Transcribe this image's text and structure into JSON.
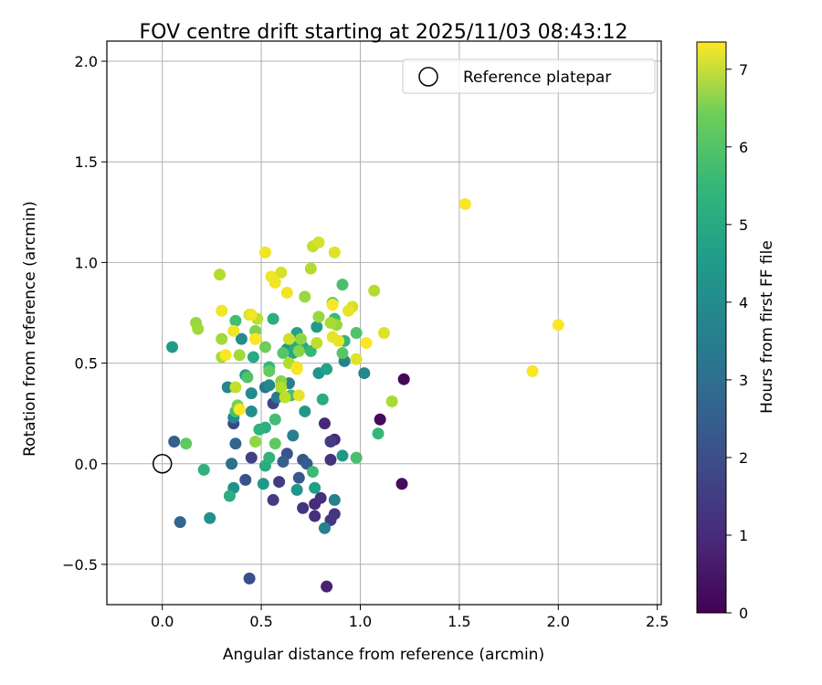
{
  "chart_data": {
    "type": "scatter",
    "title": "FOV centre drift starting at 2025/11/03 08:43:12",
    "xlabel": "Angular distance from reference (arcmin)",
    "ylabel": "Rotation from reference (arcmin)",
    "xlim": [
      -0.28,
      2.52
    ],
    "ylim": [
      -0.7,
      2.1
    ],
    "x_ticks": [
      {
        "value": 0.0,
        "label": "0.0"
      },
      {
        "value": 0.5,
        "label": "0.5"
      },
      {
        "value": 1.0,
        "label": "1.0"
      },
      {
        "value": 1.5,
        "label": "1.5"
      },
      {
        "value": 2.0,
        "label": "2.0"
      },
      {
        "value": 2.5,
        "label": "2.5"
      }
    ],
    "y_ticks": [
      {
        "value": -0.5,
        "label": "−0.5"
      },
      {
        "value": 0.0,
        "label": "0.0"
      },
      {
        "value": 0.5,
        "label": "0.5"
      },
      {
        "value": 1.0,
        "label": "1.0"
      },
      {
        "value": 1.5,
        "label": "1.5"
      },
      {
        "value": 2.0,
        "label": "2.0"
      }
    ],
    "grid": true,
    "legend": {
      "placement": "top-right",
      "entries": [
        {
          "label": "Reference platepar",
          "marker": "open-circle"
        }
      ]
    },
    "reference_point": {
      "x": 0.0,
      "y": 0.0
    },
    "colorbar": {
      "label": "Hours from first FF file",
      "colormap": "viridis",
      "range": [
        0,
        7.35
      ],
      "ticks": [
        {
          "value": 0,
          "label": "0"
        },
        {
          "value": 1,
          "label": "1"
        },
        {
          "value": 2,
          "label": "2"
        },
        {
          "value": 3,
          "label": "3"
        },
        {
          "value": 4,
          "label": "4"
        },
        {
          "value": 5,
          "label": "5"
        },
        {
          "value": 6,
          "label": "6"
        },
        {
          "value": 7,
          "label": "7"
        }
      ]
    },
    "points": [
      [
        1.22,
        0.42,
        0.1
      ],
      [
        1.1,
        0.22,
        0.2
      ],
      [
        1.21,
        -0.1,
        0.2
      ],
      [
        0.83,
        -0.61,
        0.7
      ],
      [
        0.82,
        0.2,
        0.8
      ],
      [
        0.87,
        0.12,
        0.9
      ],
      [
        0.77,
        -0.2,
        0.9
      ],
      [
        0.8,
        -0.17,
        1.0
      ],
      [
        0.77,
        -0.26,
        1.0
      ],
      [
        0.71,
        -0.22,
        1.1
      ],
      [
        0.85,
        0.02,
        1.1
      ],
      [
        0.87,
        -0.25,
        1.2
      ],
      [
        0.85,
        -0.28,
        1.2
      ],
      [
        0.85,
        0.11,
        1.3
      ],
      [
        0.59,
        -0.09,
        1.3
      ],
      [
        0.56,
        -0.18,
        1.3
      ],
      [
        0.45,
        0.03,
        1.4
      ],
      [
        0.56,
        0.3,
        1.5
      ],
      [
        0.36,
        0.2,
        1.6
      ],
      [
        0.44,
        -0.57,
        1.8
      ],
      [
        0.42,
        -0.08,
        1.9
      ],
      [
        0.63,
        0.05,
        1.9
      ],
      [
        0.69,
        -0.07,
        2.0
      ],
      [
        0.71,
        0.02,
        2.0
      ],
      [
        0.73,
        0.0,
        2.1
      ],
      [
        0.61,
        0.01,
        2.2
      ],
      [
        0.06,
        0.11,
        2.2
      ],
      [
        0.09,
        -0.29,
        2.4
      ],
      [
        0.37,
        0.1,
        2.4
      ],
      [
        0.35,
        0.0,
        2.7
      ],
      [
        0.52,
        0.38,
        2.9
      ],
      [
        0.58,
        0.33,
        3.0
      ],
      [
        0.64,
        0.4,
        3.1
      ],
      [
        0.66,
        0.14,
        3.2
      ],
      [
        0.82,
        -0.32,
        3.2
      ],
      [
        0.87,
        -0.18,
        3.2
      ],
      [
        0.92,
        0.51,
        3.3
      ],
      [
        0.33,
        0.38,
        3.4
      ],
      [
        0.54,
        0.39,
        3.4
      ],
      [
        1.02,
        0.45,
        3.4
      ],
      [
        0.36,
        0.23,
        3.5
      ],
      [
        0.45,
        0.35,
        3.5
      ],
      [
        0.45,
        0.26,
        3.6
      ],
      [
        0.4,
        0.62,
        3.6
      ],
      [
        0.36,
        -0.12,
        3.7
      ],
      [
        0.24,
        -0.27,
        3.7
      ],
      [
        0.68,
        -0.13,
        3.8
      ],
      [
        0.79,
        0.45,
        3.8
      ],
      [
        0.91,
        0.04,
        3.9
      ],
      [
        0.63,
        0.57,
        3.9
      ],
      [
        0.72,
        0.26,
        3.9
      ],
      [
        0.51,
        -0.1,
        4.0
      ],
      [
        0.05,
        0.58,
        4.0
      ],
      [
        0.78,
        0.68,
        4.0
      ],
      [
        0.42,
        0.44,
        4.1
      ],
      [
        0.77,
        -0.12,
        4.1
      ],
      [
        0.83,
        0.47,
        4.2
      ],
      [
        0.68,
        0.65,
        4.2
      ],
      [
        0.66,
        0.55,
        4.3
      ],
      [
        0.46,
        0.53,
        4.4
      ],
      [
        0.71,
        0.58,
        4.4
      ],
      [
        0.67,
        0.58,
        4.5
      ],
      [
        0.52,
        -0.01,
        4.5
      ],
      [
        0.81,
        0.32,
        4.5
      ],
      [
        0.52,
        0.18,
        4.6
      ],
      [
        0.56,
        0.72,
        4.6
      ],
      [
        0.34,
        -0.16,
        4.6
      ],
      [
        0.21,
        -0.03,
        4.7
      ],
      [
        0.54,
        0.03,
        4.7
      ],
      [
        0.49,
        0.17,
        4.7
      ],
      [
        0.92,
        0.61,
        4.8
      ],
      [
        0.54,
        0.48,
        4.9
      ],
      [
        1.09,
        0.15,
        4.9
      ],
      [
        0.75,
        0.56,
        4.9
      ],
      [
        0.76,
        -0.04,
        5.0
      ],
      [
        0.87,
        0.72,
        5.0
      ],
      [
        0.57,
        0.22,
        5.1
      ],
      [
        0.65,
        0.34,
        5.1
      ],
      [
        0.37,
        0.71,
        5.1
      ],
      [
        0.91,
        0.89,
        5.2
      ],
      [
        0.98,
        0.03,
        5.2
      ],
      [
        0.37,
        0.26,
        5.2
      ],
      [
        0.43,
        0.43,
        5.3
      ],
      [
        0.98,
        0.65,
        5.3
      ],
      [
        0.61,
        0.55,
        5.4
      ],
      [
        0.91,
        0.55,
        5.4
      ],
      [
        0.57,
        0.1,
        5.5
      ],
      [
        0.12,
        0.1,
        5.5
      ],
      [
        0.54,
        0.46,
        5.6
      ],
      [
        0.86,
        0.8,
        5.6
      ],
      [
        0.52,
        0.58,
        5.7
      ],
      [
        0.38,
        0.29,
        5.8
      ],
      [
        0.47,
        0.66,
        5.9
      ],
      [
        0.6,
        0.41,
        6.0
      ],
      [
        0.69,
        0.56,
        6.0
      ],
      [
        0.7,
        0.62,
        6.1
      ],
      [
        0.47,
        0.11,
        6.1
      ],
      [
        0.79,
        0.73,
        6.2
      ],
      [
        0.88,
        0.69,
        6.2
      ],
      [
        0.72,
        0.83,
        6.2
      ],
      [
        0.17,
        0.7,
        6.2
      ],
      [
        0.18,
        0.67,
        6.3
      ],
      [
        0.3,
        0.62,
        6.3
      ],
      [
        0.39,
        0.54,
        6.3
      ],
      [
        0.3,
        0.53,
        6.4
      ],
      [
        1.16,
        0.31,
        6.4
      ],
      [
        0.85,
        0.7,
        6.4
      ],
      [
        0.64,
        0.5,
        6.5
      ],
      [
        0.29,
        0.94,
        6.5
      ],
      [
        0.6,
        0.38,
        6.5
      ],
      [
        0.75,
        0.97,
        6.5
      ],
      [
        1.07,
        0.86,
        6.5
      ],
      [
        0.62,
        0.33,
        6.6
      ],
      [
        0.78,
        0.6,
        6.6
      ],
      [
        0.48,
        0.72,
        6.6
      ],
      [
        0.76,
        1.08,
        6.7
      ],
      [
        0.37,
        0.38,
        6.7
      ],
      [
        0.44,
        0.74,
        6.8
      ],
      [
        0.64,
        0.62,
        6.8
      ],
      [
        0.79,
        1.1,
        6.9
      ],
      [
        0.6,
        0.95,
        6.9
      ],
      [
        0.96,
        0.78,
        6.9
      ],
      [
        1.12,
        0.65,
        7.0
      ],
      [
        0.87,
        1.05,
        7.0
      ],
      [
        0.98,
        0.52,
        7.0
      ],
      [
        0.94,
        0.76,
        7.1
      ],
      [
        0.89,
        0.61,
        7.1
      ],
      [
        0.68,
        0.48,
        7.1
      ],
      [
        0.86,
        0.63,
        7.1
      ],
      [
        0.69,
        0.34,
        7.1
      ],
      [
        0.52,
        1.05,
        7.2
      ],
      [
        0.55,
        0.93,
        7.2
      ],
      [
        0.57,
        0.9,
        7.2
      ],
      [
        0.63,
        0.85,
        7.2
      ],
      [
        0.3,
        0.76,
        7.2
      ],
      [
        0.36,
        0.66,
        7.2
      ],
      [
        0.45,
        0.74,
        7.2
      ],
      [
        0.47,
        0.62,
        7.3
      ],
      [
        0.39,
        0.27,
        7.3
      ],
      [
        0.32,
        0.54,
        7.3
      ],
      [
        0.68,
        0.47,
        7.3
      ],
      [
        1.53,
        1.29,
        7.3
      ],
      [
        1.87,
        0.46,
        7.3
      ],
      [
        2.0,
        0.69,
        7.3
      ],
      [
        1.03,
        0.6,
        7.3
      ],
      [
        0.86,
        0.79,
        7.3
      ]
    ]
  }
}
